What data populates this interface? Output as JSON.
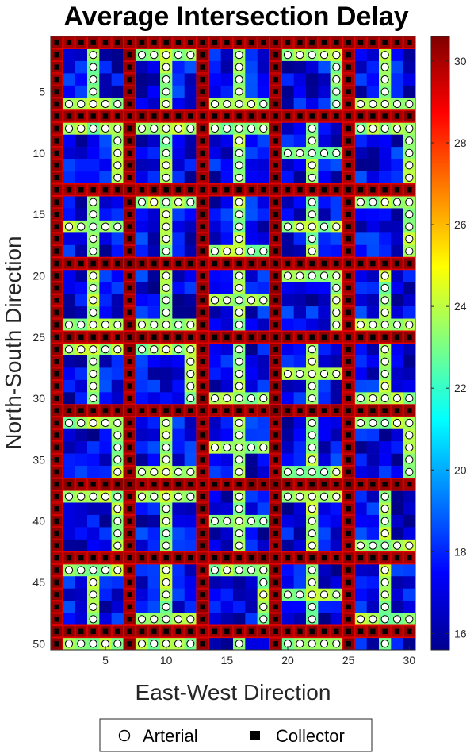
{
  "chart_data": {
    "type": "heatmap",
    "title": "Average Intersection Delay",
    "xlabel": "East-West Direction",
    "ylabel": "North-South Direction",
    "grid_cols": 30,
    "grid_rows": 50,
    "xlim": [
      0.5,
      30.5
    ],
    "ylim": [
      0.5,
      50.5
    ],
    "y_direction": "reverse",
    "x_ticks": [
      "5",
      "10",
      "15",
      "20",
      "25",
      "30"
    ],
    "y_ticks": [
      "5",
      "10",
      "15",
      "20",
      "25",
      "30",
      "35",
      "40",
      "45",
      "50"
    ],
    "colorbar": {
      "colormap": "jet",
      "range": [
        15.6,
        30.6
      ],
      "ticks": [
        "16",
        "18",
        "20",
        "22",
        "24",
        "26",
        "28",
        "30"
      ]
    },
    "block_period": 6,
    "collector_offset_in_block": 0,
    "block_interior_cells": 5,
    "delay_estimates": {
      "collector": 30.0,
      "arterial": 23.5,
      "local": 17.0
    },
    "legend": {
      "location": "bottom-outside",
      "items": [
        {
          "label": "Arterial",
          "marker": "open-circle"
        },
        {
          "label": "Collector",
          "marker": "filled-square"
        }
      ]
    },
    "grid_line_color": "#e00000",
    "colors": {
      "collector_cell": "#800000",
      "marker_circle_fill": "#ffffff",
      "marker_square": "#000000"
    }
  }
}
